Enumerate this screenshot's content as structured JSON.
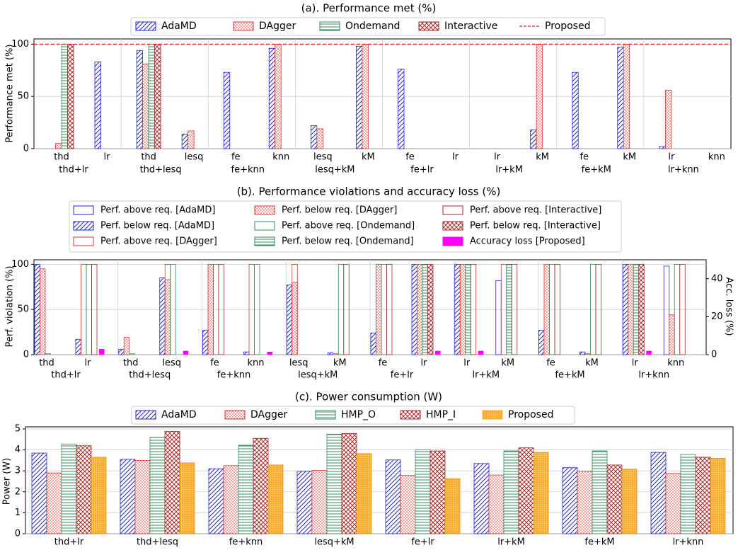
{
  "chart_data": [
    {
      "type": "bar",
      "title": "(a). Performance met (%)",
      "ylabel": "Performance met (%)",
      "xlabel": "",
      "ylim": [
        0,
        105
      ],
      "yticks": [
        0,
        50,
        100
      ],
      "grid": true,
      "legend_placement": "top-center",
      "legend": [
        {
          "name": "AdaMD",
          "pattern": "diag",
          "color": "#2222dd"
        },
        {
          "name": "DAgger",
          "pattern": "dots",
          "color": "#e03030"
        },
        {
          "name": "Ondemand",
          "pattern": "horiz",
          "color": "#2e8b57"
        },
        {
          "name": "Interactive",
          "pattern": "cross",
          "color": "#a52a2a"
        },
        {
          "name": "Proposed",
          "pattern": "dashed-line",
          "color": "#e02020"
        }
      ],
      "reference_line": {
        "name": "Proposed",
        "value": 100
      },
      "groups": [
        {
          "label": "thd+lr",
          "sub_labels": [
            "thd",
            "lr"
          ],
          "apps": [
            {
              "name": "thd",
              "values": [
                null,
                5,
                100,
                100
              ]
            },
            {
              "name": "lr",
              "values": [
                83,
                null,
                null,
                null
              ]
            }
          ]
        },
        {
          "label": "thd+lesq",
          "sub_labels": [
            "thd",
            "lesq"
          ],
          "apps": [
            {
              "name": "thd",
              "values": [
                94,
                81,
                100,
                100
              ]
            },
            {
              "name": "lesq",
              "values": [
                14,
                17,
                null,
                null
              ]
            }
          ]
        },
        {
          "label": "fe+knn",
          "sub_labels": [
            "fe",
            "knn"
          ],
          "apps": [
            {
              "name": "fe",
              "values": [
                73,
                null,
                null,
                null
              ]
            },
            {
              "name": "knn",
              "values": [
                96,
                100,
                null,
                null
              ]
            }
          ]
        },
        {
          "label": "lesq+kM",
          "sub_labels": [
            "lesq",
            "kM"
          ],
          "apps": [
            {
              "name": "lesq",
              "values": [
                22,
                19,
                null,
                null
              ]
            },
            {
              "name": "kM",
              "values": [
                98,
                100,
                null,
                null
              ]
            }
          ]
        },
        {
          "label": "fe+lr",
          "sub_labels": [
            "fe",
            "lr"
          ],
          "apps": [
            {
              "name": "fe",
              "values": [
                76,
                null,
                null,
                null
              ]
            },
            {
              "name": "lr",
              "values": [
                null,
                null,
                null,
                null
              ]
            }
          ]
        },
        {
          "label": "lr+kM",
          "sub_labels": [
            "lr",
            "kM"
          ],
          "apps": [
            {
              "name": "lr",
              "values": [
                null,
                null,
                null,
                null
              ]
            },
            {
              "name": "kM",
              "values": [
                18,
                100,
                null,
                null
              ]
            }
          ]
        },
        {
          "label": "fe+kM",
          "sub_labels": [
            "fe",
            "kM"
          ],
          "apps": [
            {
              "name": "fe",
              "values": [
                73,
                null,
                null,
                null
              ]
            },
            {
              "name": "kM",
              "values": [
                97,
                100,
                null,
                null
              ]
            }
          ]
        },
        {
          "label": "lr+knn",
          "sub_labels": [
            "lr",
            "knn"
          ],
          "apps": [
            {
              "name": "lr",
              "values": [
                2,
                56,
                null,
                null
              ]
            },
            {
              "name": "knn",
              "values": [
                null,
                null,
                null,
                null
              ]
            }
          ]
        }
      ]
    },
    {
      "type": "bar",
      "title": "(b). Performance violations and accuracy loss (%)",
      "ylabel": "Perf. violation (%)",
      "y2label": "Acc. loss (%)",
      "xlabel": "",
      "ylim": [
        0,
        105
      ],
      "yticks": [
        0,
        50,
        100
      ],
      "y2lim": [
        0,
        50
      ],
      "y2ticks": [
        0,
        20,
        40
      ],
      "grid": true,
      "legend_placement": "top-center",
      "legend": [
        {
          "name": "Perf. above req. [AdaMD]",
          "pattern": "outline",
          "color": "#2222dd"
        },
        {
          "name": "Perf. below req. [AdaMD]",
          "pattern": "diag",
          "color": "#2222dd"
        },
        {
          "name": "Perf. above req. [DAgger]",
          "pattern": "outline",
          "color": "#e03030"
        },
        {
          "name": "Perf. below req. [DAgger]",
          "pattern": "dots",
          "color": "#e03030"
        },
        {
          "name": "Perf. above req. [Ondemand]",
          "pattern": "outline",
          "color": "#2e8b57"
        },
        {
          "name": "Perf. below req. [Ondemand]",
          "pattern": "horiz",
          "color": "#2e8b57"
        },
        {
          "name": "Perf. above req. [Interactive]",
          "pattern": "outline",
          "color": "#a52a2a"
        },
        {
          "name": "Perf. below req. [Interactive]",
          "pattern": "cross",
          "color": "#a52a2a"
        },
        {
          "name": "Accuracy loss [Proposed]",
          "pattern": "solid",
          "color": "#ff00ff"
        }
      ],
      "groups": [
        {
          "label": "thd+lr",
          "sub_labels": [
            "thd",
            "lr"
          ],
          "apps": [
            {
              "name": "thd",
              "below": [
                100,
                95,
                1,
                null
              ],
              "above": [
                null,
                null,
                null,
                null
              ],
              "acc_loss": null
            },
            {
              "name": "lr",
              "below": [
                17,
                null,
                null,
                null
              ],
              "above": [
                null,
                100,
                100,
                100
              ],
              "acc_loss": 3
            }
          ]
        },
        {
          "label": "thd+lesq",
          "sub_labels": [
            "thd",
            "lesq"
          ],
          "apps": [
            {
              "name": "thd",
              "below": [
                6,
                19,
                1,
                null
              ],
              "above": [
                null,
                null,
                null,
                null
              ],
              "acc_loss": null
            },
            {
              "name": "lesq",
              "below": [
                85,
                83,
                null,
                null
              ],
              "above": [
                null,
                100,
                100,
                null
              ],
              "acc_loss": 2
            }
          ]
        },
        {
          "label": "fe+knn",
          "sub_labels": [
            "fe",
            "knn"
          ],
          "apps": [
            {
              "name": "fe",
              "below": [
                27,
                100,
                null,
                null
              ],
              "above": [
                null,
                null,
                100,
                100
              ],
              "acc_loss": null
            },
            {
              "name": "knn",
              "below": [
                3,
                null,
                null,
                null
              ],
              "above": [
                null,
                100,
                100,
                null
              ],
              "acc_loss": 1.5
            }
          ]
        },
        {
          "label": "lesq+kM",
          "sub_labels": [
            "lesq",
            "kM"
          ],
          "apps": [
            {
              "name": "lesq",
              "below": [
                77,
                80,
                null,
                null
              ],
              "above": [
                null,
                100,
                null,
                null
              ],
              "acc_loss": null
            },
            {
              "name": "kM",
              "below": [
                2,
                1,
                null,
                null
              ],
              "above": [
                null,
                null,
                100,
                100
              ],
              "acc_loss": null
            }
          ]
        },
        {
          "label": "fe+lr",
          "sub_labels": [
            "fe",
            "lr"
          ],
          "apps": [
            {
              "name": "fe",
              "below": [
                24,
                100,
                null,
                null
              ],
              "above": [
                null,
                null,
                100,
                100
              ],
              "acc_loss": null
            },
            {
              "name": "lr",
              "below": [
                100,
                100,
                100,
                100
              ],
              "above": [
                null,
                null,
                null,
                null
              ],
              "acc_loss": 2
            }
          ]
        },
        {
          "label": "lr+kM",
          "sub_labels": [
            "lr",
            "kM"
          ],
          "apps": [
            {
              "name": "lr",
              "below": [
                100,
                100,
                100,
                null
              ],
              "above": [
                null,
                null,
                null,
                100
              ],
              "acc_loss": 2
            },
            {
              "name": "kM",
              "below": [
                null,
                null,
                100,
                null
              ],
              "above": [
                82,
                100,
                null,
                100
              ],
              "acc_loss": null
            }
          ]
        },
        {
          "label": "fe+kM",
          "sub_labels": [
            "fe",
            "kM"
          ],
          "apps": [
            {
              "name": "fe",
              "below": [
                27,
                100,
                null,
                null
              ],
              "above": [
                null,
                null,
                100,
                100
              ],
              "acc_loss": null
            },
            {
              "name": "kM",
              "below": [
                3,
                1,
                null,
                null
              ],
              "above": [
                null,
                null,
                100,
                100
              ],
              "acc_loss": null
            }
          ]
        },
        {
          "label": "lr+knn",
          "sub_labels": [
            "lr",
            "knn"
          ],
          "apps": [
            {
              "name": "lr",
              "below": [
                100,
                100,
                100,
                100
              ],
              "above": [
                null,
                null,
                null,
                null
              ],
              "acc_loss": 2
            },
            {
              "name": "knn",
              "below": [
                null,
                44,
                null,
                null
              ],
              "above": [
                98,
                null,
                100,
                100
              ],
              "acc_loss": null
            }
          ]
        }
      ]
    },
    {
      "type": "bar",
      "title": "(c). Power consumption (W)",
      "ylabel": "Power (W)",
      "xlabel": "",
      "ylim": [
        0,
        5.1
      ],
      "yticks": [
        0,
        1,
        2,
        3,
        4,
        5
      ],
      "grid": true,
      "legend_placement": "top-center",
      "categories": [
        "thd+lr",
        "thd+lesq",
        "fe+knn",
        "lesq+kM",
        "fe+lr",
        "lr+kM",
        "fe+kM",
        "lr+knn"
      ],
      "series": [
        {
          "name": "AdaMD",
          "pattern": "diag",
          "color": "#2222dd",
          "values": [
            3.85,
            3.55,
            3.1,
            2.98,
            3.52,
            3.35,
            3.15,
            3.88
          ]
        },
        {
          "name": "DAgger",
          "pattern": "dots",
          "color": "#e03030",
          "values": [
            2.9,
            3.5,
            3.25,
            3.02,
            2.78,
            2.8,
            2.98,
            2.88
          ]
        },
        {
          "name": "HMP_O",
          "pattern": "horiz",
          "color": "#2e8b57",
          "values": [
            4.28,
            4.6,
            4.22,
            4.75,
            4.0,
            3.95,
            3.95,
            3.78
          ]
        },
        {
          "name": "HMP_I",
          "pattern": "cross",
          "color": "#a52a2a",
          "values": [
            4.2,
            4.88,
            4.55,
            4.78,
            3.95,
            4.1,
            3.28,
            3.65
          ]
        },
        {
          "name": "Proposed",
          "pattern": "orange",
          "color": "#f5a623",
          "values": [
            3.65,
            3.38,
            3.28,
            3.82,
            2.62,
            3.88,
            3.08,
            3.6
          ]
        }
      ]
    }
  ]
}
